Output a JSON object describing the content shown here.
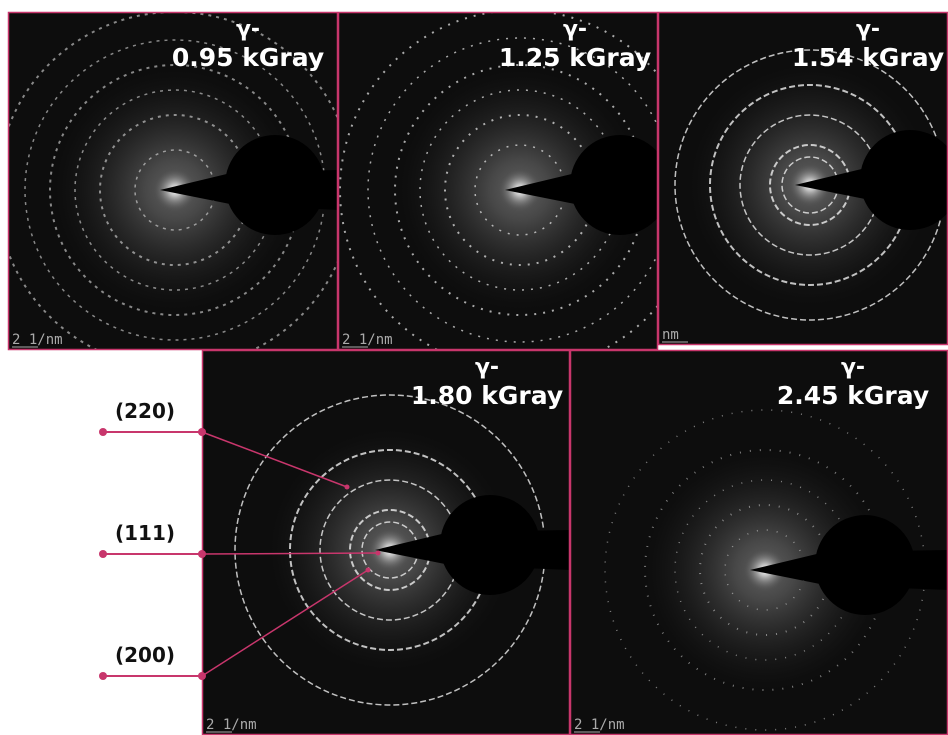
{
  "panels": [
    {
      "prefix": "γ-",
      "dose": "0.95 kGray",
      "scale": "2 1/nm"
    },
    {
      "prefix": "γ-",
      "dose": "1.25 kGray",
      "scale": "2 1/nm"
    },
    {
      "prefix": "γ-",
      "dose": "1.54 kGray",
      "scale": "nm"
    },
    {
      "prefix": "γ-",
      "dose": "1.80 kGray",
      "scale": "2 1/nm"
    },
    {
      "prefix": "γ-",
      "dose": "2.45 kGray",
      "scale": "2 1/nm"
    }
  ],
  "annotations": [
    "(220)",
    "(111)",
    "(200)"
  ]
}
